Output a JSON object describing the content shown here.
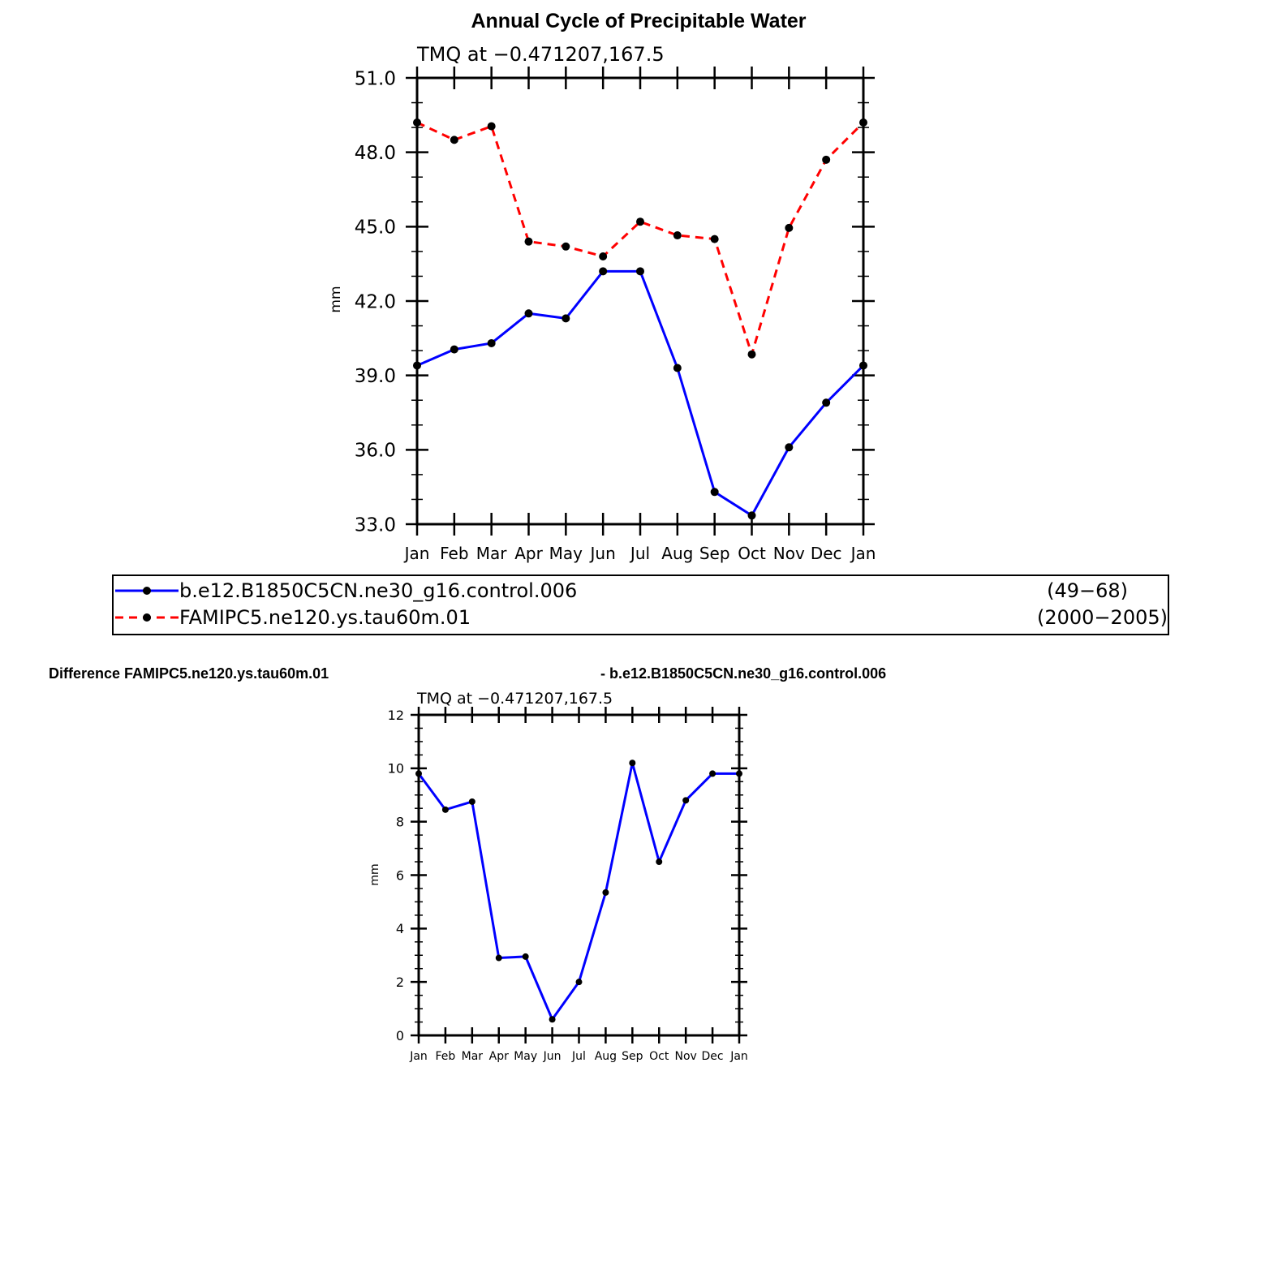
{
  "figure": {
    "title": "Annual Cycle of Precipitable Water",
    "diff_title_left": "Difference FAMIPC5.ne120.ys.tau60m.01",
    "diff_title_right": "- b.e12.B1850C5CN.ne30_g16.control.006"
  },
  "legend": {
    "entries": [
      {
        "label": "b.e12.B1850C5CN.ne30_g16.control.006",
        "period": "(49−68)",
        "color": "#0000ff",
        "style": "solid"
      },
      {
        "label": "FAMIPC5.ne120.ys.tau60m.01",
        "period": "(2000−2005)",
        "color": "#ff0000",
        "style": "dashed"
      }
    ]
  },
  "chart_data": [
    {
      "type": "line",
      "subtitle": "TMQ  at  −0.471207,167.5",
      "xlabel": "",
      "ylabel": "mm",
      "categories": [
        "Jan",
        "Feb",
        "Mar",
        "Apr",
        "May",
        "Jun",
        "Jul",
        "Aug",
        "Sep",
        "Oct",
        "Nov",
        "Dec",
        "Jan"
      ],
      "ylim": [
        33.0,
        51.0
      ],
      "yticks": [
        "33.0",
        "36.0",
        "39.0",
        "42.0",
        "45.0",
        "48.0",
        "51.0"
      ],
      "series": [
        {
          "name": "b.e12.B1850C5CN.ne30_g16.control.006",
          "color": "#0000ff",
          "dash": "",
          "values": [
            39.4,
            40.05,
            40.3,
            41.5,
            41.3,
            43.2,
            43.2,
            39.3,
            34.3,
            33.35,
            36.1,
            37.9,
            39.4
          ]
        },
        {
          "name": "FAMIPC5.ne120.ys.tau60m.01",
          "color": "#ff0000",
          "dash": "10,7",
          "values": [
            49.2,
            48.5,
            49.05,
            44.4,
            44.2,
            43.8,
            45.2,
            44.65,
            44.5,
            39.85,
            44.95,
            47.7,
            49.2
          ]
        }
      ]
    },
    {
      "type": "line",
      "subtitle": "TMQ  at  −0.471207,167.5",
      "xlabel": "",
      "ylabel": "mm",
      "categories": [
        "Jan",
        "Feb",
        "Mar",
        "Apr",
        "May",
        "Jun",
        "Jul",
        "Aug",
        "Sep",
        "Oct",
        "Nov",
        "Dec",
        "Jan"
      ],
      "ylim": [
        0,
        12
      ],
      "yticks": [
        "0",
        "2",
        "4",
        "6",
        "8",
        "10",
        "12"
      ],
      "series": [
        {
          "name": "Difference",
          "color": "#0000ff",
          "dash": "",
          "values": [
            9.8,
            8.45,
            8.75,
            2.9,
            2.95,
            0.6,
            2.0,
            5.35,
            10.2,
            6.5,
            8.8,
            9.8,
            9.8
          ]
        }
      ]
    }
  ]
}
